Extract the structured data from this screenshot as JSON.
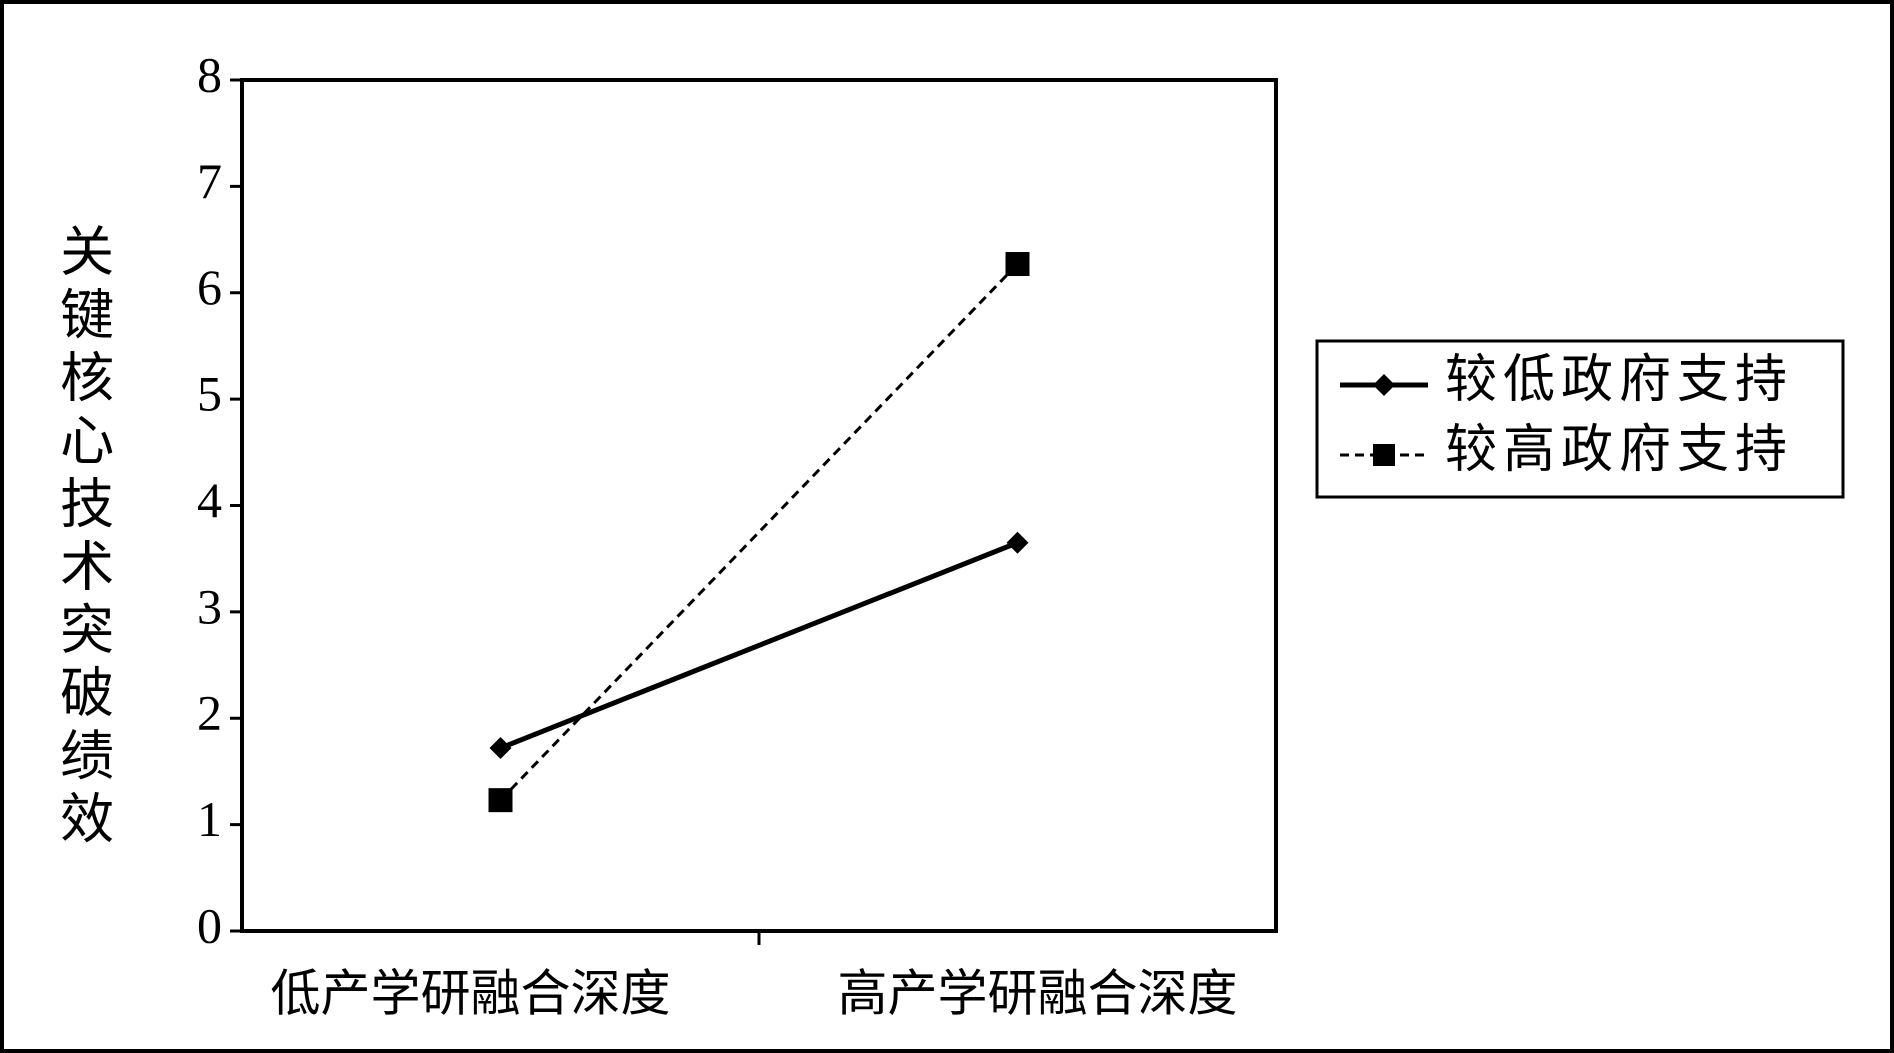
{
  "chart_data": {
    "type": "line",
    "y_label": "关键核心技术突破绩效",
    "categories": [
      "低产学研融合深度",
      "高产学研融合深度"
    ],
    "series": [
      {
        "name": "较低政府支持",
        "color": "#000000",
        "line_style": "solid",
        "marker": "diamond",
        "values": [
          1.72,
          3.65
        ]
      },
      {
        "name": "较高政府支持",
        "color": "#000000",
        "line_style": "dashed",
        "marker": "square",
        "values": [
          1.23,
          6.27
        ]
      }
    ],
    "ylim": [
      0,
      8
    ],
    "yticks": [
      0,
      1,
      2,
      3,
      4,
      5,
      6,
      7,
      8
    ],
    "grid": false,
    "legend": "right"
  }
}
